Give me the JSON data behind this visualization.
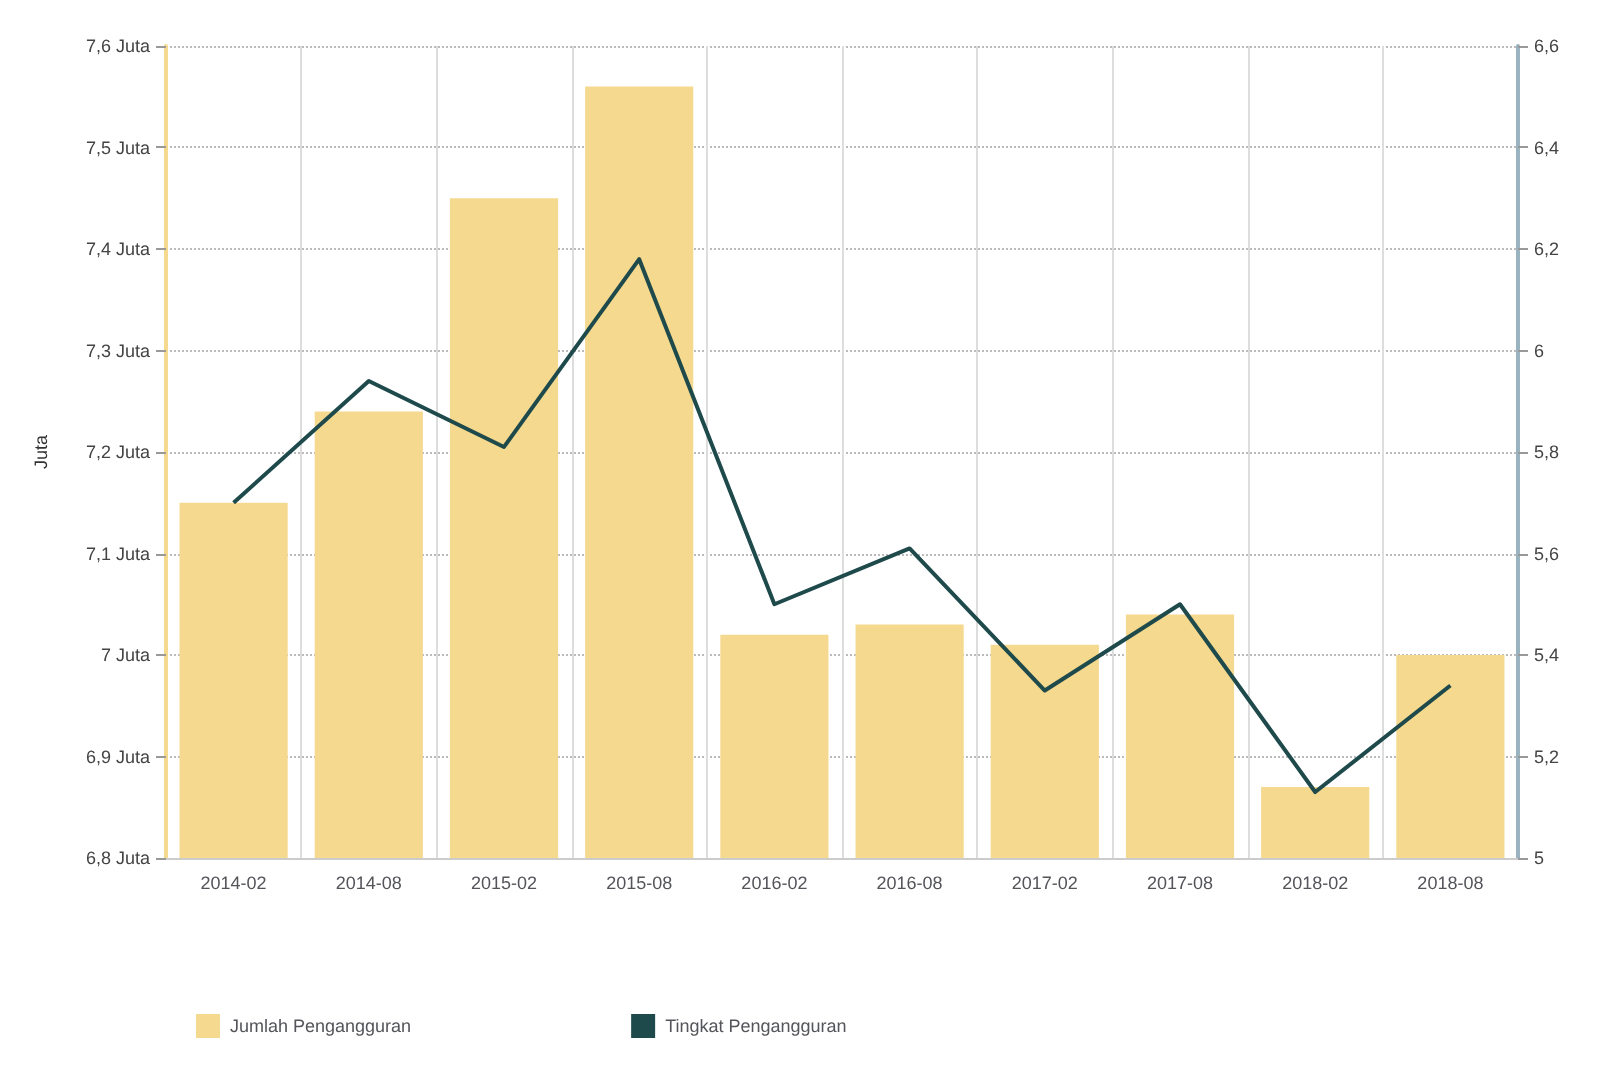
{
  "chart_data": {
    "type": "bar",
    "ylabel": "Juta",
    "categories": [
      "2014-02",
      "2014-08",
      "2015-02",
      "2015-08",
      "2016-02",
      "2016-08",
      "2017-02",
      "2017-08",
      "2018-02",
      "2018-08"
    ],
    "series": [
      {
        "name": "Jumlah Pengangguran",
        "color": "#f5d98f",
        "values": [
          7.15,
          7.24,
          7.45,
          7.56,
          7.02,
          7.03,
          7.01,
          7.04,
          6.87,
          7.0
        ]
      },
      {
        "name": "Tingkat Pengangguran",
        "type": "line",
        "axis": "y2",
        "color": "#1f4a4c",
        "values": [
          5.7,
          5.94,
          5.81,
          6.18,
          5.5,
          5.61,
          5.33,
          5.5,
          5.13,
          5.34
        ]
      }
    ],
    "ylim": [
      6.8,
      7.6
    ],
    "yticks": [
      {
        "value": 6.8,
        "label": "6,8 Juta"
      },
      {
        "value": 6.9,
        "label": "6,9 Juta"
      },
      {
        "value": 7,
        "label": "7 Juta"
      },
      {
        "value": 7.1,
        "label": "7,1 Juta"
      },
      {
        "value": 7.2,
        "label": "7,2 Juta"
      },
      {
        "value": 7.3,
        "label": "7,3 Juta"
      },
      {
        "value": 7.4,
        "label": "7,4 Juta"
      },
      {
        "value": 7.5,
        "label": "7,5 Juta"
      },
      {
        "value": 7.6,
        "label": "7,6 Juta"
      }
    ],
    "y2lim": [
      5,
      6.6
    ],
    "y2ticks": [
      5,
      {
        "value": 5.2,
        "label": "5,2"
      },
      {
        "value": 5.4,
        "label": "5,4"
      },
      {
        "value": 5.6,
        "label": "5,6"
      },
      {
        "value": 5.8,
        "label": "5,8"
      },
      6,
      {
        "value": 6.2,
        "label": "6,2"
      },
      {
        "value": 6.4,
        "label": "6,4"
      },
      {
        "value": 6.6,
        "label": "6,6"
      }
    ],
    "grid": true,
    "legend": "bottom left",
    "marker": "none",
    "line_style": "solid"
  }
}
